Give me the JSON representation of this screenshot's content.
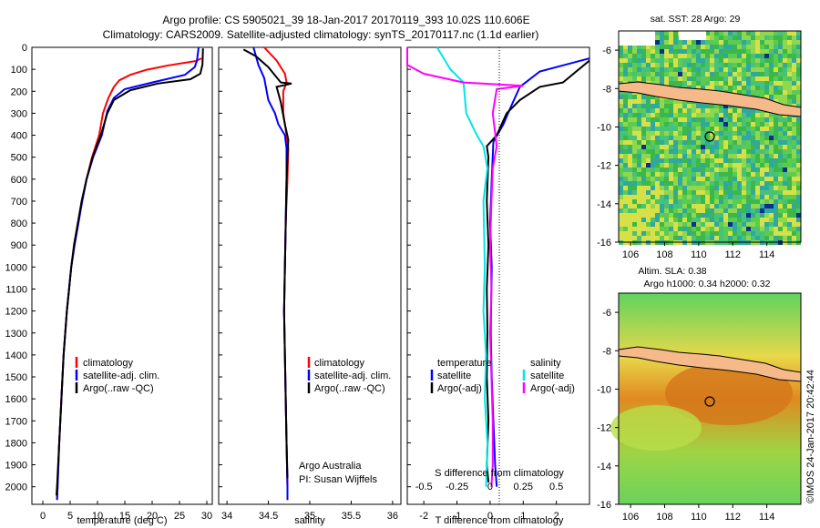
{
  "header": {
    "line1": "Argo profile: CS 5905021_39 18-Jan-2017 20170119_393 10.02S 110.606E",
    "line2": "Climatology: CARS2009. Satellite-adjusted climatology: synTS_20170117.nc (1.1d earlier)"
  },
  "colors": {
    "climatology": "#ff0000",
    "satellite": "#0000ff",
    "argo": "#000000",
    "satellite_s": "#00e5e5",
    "argo_s": "#ff00ff"
  },
  "depth_ticks": [
    "0",
    "100",
    "200",
    "300",
    "400",
    "500",
    "600",
    "700",
    "800",
    "900",
    "1000",
    "1100",
    "1200",
    "1300",
    "1400",
    "1500",
    "1600",
    "1700",
    "1800",
    "1900",
    "2000"
  ],
  "chart_data": [
    {
      "type": "line",
      "id": "temperature",
      "xlabel": "temperature (deg C)",
      "xticks": [
        "0",
        "5",
        "10",
        "15",
        "20",
        "25",
        "30"
      ],
      "xlim": [
        -2,
        31
      ],
      "ylim": [
        0,
        2080
      ],
      "legend": [
        "climatology",
        "satellite-adj. clim.",
        "Argo(..raw -QC)"
      ],
      "series": [
        {
          "name": "climatology",
          "color": "red",
          "points": [
            [
              29,
              50
            ],
            [
              28,
              62
            ],
            [
              23,
              82
            ],
            [
              19,
              102
            ],
            [
              16,
              125
            ],
            [
              14,
              150
            ],
            [
              13,
              180
            ],
            [
              12,
              230
            ],
            [
              11,
              300
            ],
            [
              10.3,
              400
            ],
            [
              9,
              500
            ],
            [
              8,
              600
            ],
            [
              7.2,
              700
            ],
            [
              6.5,
              800
            ],
            [
              5.8,
              900
            ],
            [
              5.2,
              1000
            ],
            [
              4.8,
              1100
            ],
            [
              4.4,
              1200
            ],
            [
              4.1,
              1300
            ],
            [
              3.8,
              1400
            ],
            [
              3.6,
              1500
            ],
            [
              3.4,
              1600
            ],
            [
              3.2,
              1700
            ],
            [
              3,
              1800
            ],
            [
              2.85,
              1900
            ],
            [
              2.7,
              2000
            ],
            [
              2.6,
              2060
            ]
          ]
        },
        {
          "name": "satellite-adj. clim.",
          "color": "blue",
          "points": [
            [
              28.5,
              0
            ],
            [
              28.2,
              60
            ],
            [
              27.8,
              90
            ],
            [
              26,
              125
            ],
            [
              20,
              160
            ],
            [
              15,
              190
            ],
            [
              13,
              230
            ],
            [
              11.8,
              290
            ],
            [
              10.8,
              400
            ],
            [
              9.2,
              500
            ],
            [
              8,
              600
            ],
            [
              7.2,
              700
            ],
            [
              6.5,
              800
            ],
            [
              5.8,
              900
            ],
            [
              5.2,
              1000
            ],
            [
              4.8,
              1100
            ],
            [
              4.4,
              1200
            ],
            [
              4.1,
              1300
            ],
            [
              3.8,
              1400
            ],
            [
              3.6,
              1500
            ],
            [
              3.4,
              1600
            ],
            [
              3.2,
              1700
            ],
            [
              3,
              1800
            ],
            [
              2.85,
              1900
            ],
            [
              2.7,
              2000
            ],
            [
              2.6,
              2060
            ]
          ]
        },
        {
          "name": "Argo(..raw -QC)",
          "color": "black",
          "points": [
            [
              29.3,
              5
            ],
            [
              29.2,
              80
            ],
            [
              28.8,
              120
            ],
            [
              27,
              145
            ],
            [
              21,
              165
            ],
            [
              16,
              195
            ],
            [
              13,
              240
            ],
            [
              11.8,
              300
            ],
            [
              10.6,
              400
            ],
            [
              9.1,
              500
            ],
            [
              8,
              600
            ],
            [
              7.1,
              700
            ],
            [
              6.4,
              800
            ],
            [
              5.7,
              900
            ],
            [
              5.2,
              1000
            ],
            [
              4.8,
              1100
            ],
            [
              4.4,
              1200
            ],
            [
              4.1,
              1300
            ],
            [
              3.8,
              1400
            ],
            [
              3.6,
              1500
            ],
            [
              3.4,
              1600
            ],
            [
              3.2,
              1700
            ],
            [
              3,
              1800
            ],
            [
              2.8,
              1900
            ],
            [
              2.6,
              2000
            ],
            [
              2.5,
              2040
            ]
          ]
        }
      ]
    },
    {
      "type": "line",
      "id": "salinity",
      "xlabel": "salinity",
      "xticks": [
        "34",
        "34.5",
        "35",
        "35.5",
        "36"
      ],
      "xlim": [
        33.9,
        36.1
      ],
      "ylim": [
        0,
        2080
      ],
      "legend": [
        "climatology",
        "satellite-adj. clim.",
        "Argo(..raw -QC)"
      ],
      "annotation": [
        "Argo Australia",
        "PI: Susan Wijffels"
      ],
      "series": [
        {
          "name": "climatology",
          "color": "red",
          "points": [
            [
              34.45,
              0
            ],
            [
              34.6,
              60
            ],
            [
              34.7,
              120
            ],
            [
              34.72,
              160
            ],
            [
              34.68,
              200
            ],
            [
              34.68,
              300
            ],
            [
              34.72,
              400
            ],
            [
              34.74,
              460
            ],
            [
              34.73,
              600
            ],
            [
              34.71,
              800
            ],
            [
              34.7,
              1000
            ],
            [
              34.69,
              1200
            ],
            [
              34.7,
              1400
            ],
            [
              34.71,
              1600
            ],
            [
              34.72,
              1800
            ],
            [
              34.73,
              2000
            ],
            [
              34.73,
              2060
            ]
          ]
        },
        {
          "name": "satellite-adj. clim.",
          "color": "blue",
          "points": [
            [
              34.32,
              0
            ],
            [
              34.38,
              80
            ],
            [
              34.45,
              140
            ],
            [
              34.5,
              240
            ],
            [
              34.58,
              300
            ],
            [
              34.62,
              350
            ],
            [
              34.7,
              400
            ],
            [
              34.72,
              460
            ],
            [
              34.72,
              600
            ],
            [
              34.71,
              800
            ],
            [
              34.7,
              1000
            ],
            [
              34.69,
              1200
            ],
            [
              34.7,
              1400
            ],
            [
              34.71,
              1600
            ],
            [
              34.72,
              1800
            ],
            [
              34.73,
              2000
            ],
            [
              34.73,
              2060
            ]
          ]
        },
        {
          "name": "Argo(..raw -QC)",
          "color": "black",
          "points": [
            [
              34.2,
              10
            ],
            [
              34.35,
              40
            ],
            [
              34.5,
              90
            ],
            [
              34.65,
              160
            ],
            [
              34.78,
              165
            ],
            [
              34.6,
              180
            ],
            [
              34.65,
              250
            ],
            [
              34.7,
              350
            ],
            [
              34.74,
              420
            ],
            [
              34.73,
              500
            ],
            [
              34.72,
              600
            ],
            [
              34.71,
              800
            ],
            [
              34.7,
              1000
            ],
            [
              34.69,
              1200
            ],
            [
              34.7,
              1400
            ],
            [
              34.71,
              1600
            ],
            [
              34.72,
              1800
            ],
            [
              34.73,
              1960
            ]
          ]
        }
      ]
    },
    {
      "type": "line",
      "id": "difference",
      "xlabel": "T difference from climatology",
      "xticks": [
        "-2",
        "-1",
        "0",
        "1",
        "2"
      ],
      "xlim": [
        -2.5,
        3
      ],
      "s_label": "S difference from climatology",
      "s_ticks": [
        "-0.5",
        "-0.25",
        "0",
        "0.25",
        "0.5"
      ],
      "ylim": [
        0,
        2080
      ],
      "legend_t": [
        "temperature",
        "satellite",
        "Argo(-adj)"
      ],
      "legend_s": [
        "salinity",
        "satellite",
        "Argo(-adj)"
      ],
      "series": [
        {
          "name": "satellite",
          "color": "blue",
          "points": [
            [
              3,
              50
            ],
            [
              1.5,
              110
            ],
            [
              0.9,
              180
            ],
            [
              0.6,
              280
            ],
            [
              0.4,
              350
            ],
            [
              0.1,
              430
            ],
            [
              0.05,
              600
            ],
            [
              0,
              800
            ],
            [
              0.05,
              1000
            ],
            [
              0.02,
              1300
            ],
            [
              0.05,
              1500
            ],
            [
              0.1,
              1700
            ],
            [
              0.15,
              1900
            ],
            [
              0.2,
              2000
            ]
          ]
        },
        {
          "name": "Argo(-adj)",
          "color": "black",
          "points": [
            [
              3,
              60
            ],
            [
              2.2,
              160
            ],
            [
              1.5,
              180
            ],
            [
              0.9,
              240
            ],
            [
              0.5,
              300
            ],
            [
              0.2,
              400
            ],
            [
              -0.1,
              450
            ],
            [
              -0.05,
              500
            ],
            [
              -0.1,
              700
            ],
            [
              -0.05,
              900
            ],
            [
              -0.1,
              1100
            ],
            [
              -0.08,
              1300
            ],
            [
              -0.1,
              1500
            ],
            [
              -0.05,
              1700
            ],
            [
              -0.1,
              1900
            ],
            [
              -0.05,
              1980
            ]
          ]
        },
        {
          "name": "salinity satellite",
          "color": "cyan",
          "points": [
            [
              -0.4,
              0
            ],
            [
              -0.3,
              100
            ],
            [
              -0.2,
              160
            ],
            [
              -0.18,
              300
            ],
            [
              -0.1,
              400
            ],
            [
              -0.05,
              450
            ],
            [
              -0.02,
              550
            ],
            [
              -0.05,
              700
            ],
            [
              -0.04,
              1000
            ],
            [
              -0.05,
              1200
            ],
            [
              -0.03,
              1400
            ],
            [
              -0.04,
              1600
            ],
            [
              -0.02,
              1800
            ],
            [
              -0.03,
              2000
            ]
          ]
        },
        {
          "name": "salinity Argo(-adj)",
          "color": "magenta",
          "points": [
            [
              -0.9,
              0
            ],
            [
              -0.8,
              80
            ],
            [
              -0.5,
              120
            ],
            [
              -0.2,
              160
            ],
            [
              0.25,
              175
            ],
            [
              0.05,
              190
            ],
            [
              0.02,
              300
            ],
            [
              0.05,
              450
            ],
            [
              0.02,
              550
            ],
            [
              0.01,
              700
            ],
            [
              0,
              900
            ],
            [
              0.01,
              1100
            ],
            [
              0,
              1300
            ],
            [
              0.01,
              1500
            ],
            [
              0.02,
              1700
            ],
            [
              0.02,
              1900
            ],
            [
              0.01,
              2000
            ]
          ]
        }
      ]
    }
  ],
  "maps": [
    {
      "id": "sst",
      "title": "sat. SST: 28 Argo: 29",
      "yticks": [
        "-6",
        "-8",
        "-10",
        "-12",
        "-14",
        "-16"
      ],
      "xticks": [
        "106",
        "108",
        "110",
        "112",
        "114"
      ]
    },
    {
      "id": "sla",
      "title1": "Altim. SLA: 0.38",
      "title2": "Argo h1000: 0.34 h2000: 0.32",
      "yticks": [
        "-6",
        "-8",
        "-10",
        "-12",
        "-14",
        "-16"
      ],
      "xticks": [
        "106",
        "108",
        "110",
        "112",
        "114"
      ]
    }
  ],
  "footer": "©IMOS 24-Jan-2017 20:42:44"
}
